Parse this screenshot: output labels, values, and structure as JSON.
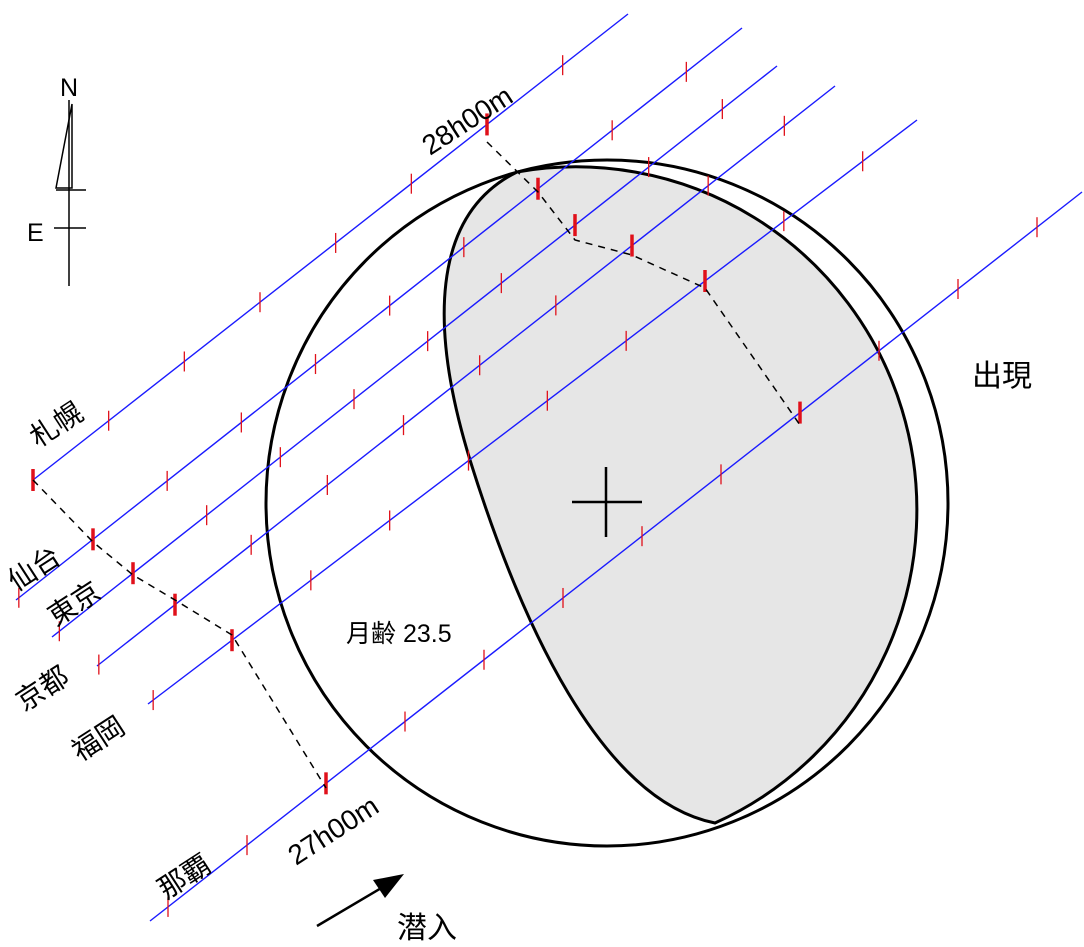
{
  "moon_age": "月齢 23.5",
  "time_end": "28h00m",
  "time_start": "27h00m",
  "disappear_label": "潜入",
  "reappear_label": "出現",
  "compass": {
    "north": "N",
    "east": "E"
  },
  "cities": [
    {
      "name": "札幌"
    },
    {
      "name": "仙台"
    },
    {
      "name": "東京"
    },
    {
      "name": "京都"
    },
    {
      "name": "福岡"
    },
    {
      "name": "那覇"
    }
  ],
  "colors": {
    "track": "#1a1aff",
    "tick": "#e0101a",
    "moon_dark": "#ffffff",
    "moon_lit": "#e6e6e6",
    "outline": "#000000"
  }
}
